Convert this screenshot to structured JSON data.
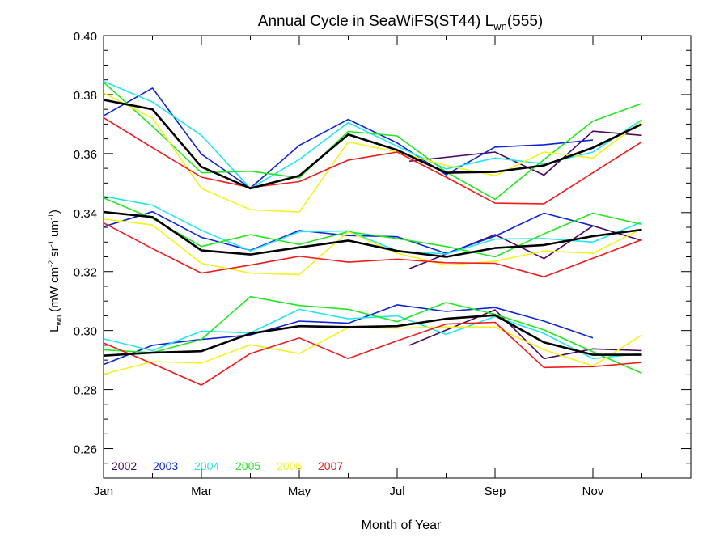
{
  "chart_data": {
    "type": "line",
    "title": {
      "main": "Annual Cycle in SeaWiFS(ST44) L",
      "sub": "wn",
      "tail": "(555)"
    },
    "xlabel": "Month of Year",
    "ylabel": {
      "main": "L",
      "sub": "wn",
      "units_pre": "(mW cm",
      "sup1": "-2",
      "units_mid1": " sr",
      "sup2": "-1",
      "units_mid2": " um",
      "sup3": "-1",
      "units_post": ")"
    },
    "xlim": [
      1,
      13
    ],
    "ylim": [
      0.25,
      0.4
    ],
    "x_ticks": [
      {
        "x": 1,
        "label": "Jan"
      },
      {
        "x": 3,
        "label": "Mar"
      },
      {
        "x": 5,
        "label": "May"
      },
      {
        "x": 7,
        "label": "Jul"
      },
      {
        "x": 9,
        "label": "Sep"
      },
      {
        "x": 11,
        "label": "Nov"
      }
    ],
    "x_minor_ticks": [
      2,
      4,
      6,
      8,
      10,
      12
    ],
    "y_ticks": [
      "0.26",
      "0.28",
      "0.30",
      "0.32",
      "0.34",
      "0.36",
      "0.38",
      "0.40"
    ],
    "legend": {
      "position": "bottom-left"
    },
    "series": [
      {
        "name": "2002",
        "color": "#4b0a5e",
        "groups": [
          {
            "x": [
              7.25,
              9,
              10,
              11,
              12
            ],
            "y": [
              0.3574,
              0.3605,
              0.3527,
              0.3676,
              0.3662
            ]
          },
          {
            "x": [
              7.25,
              9,
              10,
              11,
              12
            ],
            "y": [
              0.321,
              0.3325,
              0.3244,
              0.3355,
              0.3305
            ]
          },
          {
            "x": [
              7.25,
              9,
              10,
              11,
              12
            ],
            "y": [
              0.295,
              0.307,
              0.2905,
              0.2938,
              0.2932
            ]
          }
        ]
      },
      {
        "name": "2003",
        "color": "#0d24d6",
        "groups": [
          {
            "x": [
              1,
              2,
              3,
              4,
              5,
              6,
              7,
              8,
              9,
              10,
              11
            ],
            "y": [
              0.3728,
              0.3822,
              0.3598,
              0.3483,
              0.3628,
              0.3716,
              0.3636,
              0.3528,
              0.3622,
              0.363,
              0.3646
            ]
          },
          {
            "x": [
              1,
              2,
              3,
              4,
              5,
              6,
              7,
              8,
              9,
              10,
              11
            ],
            "y": [
              0.3352,
              0.3403,
              0.3316,
              0.3272,
              0.3339,
              0.3322,
              0.3318,
              0.3262,
              0.332,
              0.3398,
              0.3355
            ]
          },
          {
            "x": [
              1,
              2,
              3,
              4,
              5,
              6,
              7,
              8,
              9,
              10,
              11
            ],
            "y": [
              0.2885,
              0.295,
              0.297,
              0.2985,
              0.3032,
              0.3025,
              0.3087,
              0.3065,
              0.3078,
              0.3032,
              0.2975
            ]
          }
        ]
      },
      {
        "name": "2004",
        "color": "#22e6ec",
        "groups": [
          {
            "x": [
              1,
              2,
              3,
              4,
              5,
              6,
              7,
              8,
              9,
              10,
              11,
              12
            ],
            "y": [
              0.3845,
              0.3775,
              0.3662,
              0.3482,
              0.358,
              0.3705,
              0.3625,
              0.3548,
              0.3585,
              0.3565,
              0.3605,
              0.3715
            ]
          },
          {
            "x": [
              1,
              2,
              3,
              4,
              5,
              6,
              7,
              8,
              9,
              10,
              11,
              12
            ],
            "y": [
              0.3455,
              0.3425,
              0.334,
              0.327,
              0.3335,
              0.3338,
              0.327,
              0.326,
              0.331,
              0.3312,
              0.33,
              0.3368
            ]
          },
          {
            "x": [
              1,
              2,
              3,
              4,
              5,
              6,
              7,
              8,
              9,
              10,
              11,
              12
            ],
            "y": [
              0.2972,
              0.2932,
              0.2998,
              0.2992,
              0.3072,
              0.304,
              0.305,
              0.2987,
              0.3048,
              0.299,
              0.2905,
              0.2922
            ]
          }
        ]
      },
      {
        "name": "2005",
        "color": "#22e622",
        "groups": [
          {
            "x": [
              1,
              2,
              3,
              4,
              5,
              6,
              7,
              8,
              9,
              10,
              11,
              12
            ],
            "y": [
              0.3842,
              0.3692,
              0.3535,
              0.354,
              0.3518,
              0.3675,
              0.366,
              0.3538,
              0.3445,
              0.358,
              0.371,
              0.377
            ]
          },
          {
            "x": [
              1,
              2,
              3,
              4,
              5,
              6,
              7,
              8,
              9,
              10,
              11,
              12
            ],
            "y": [
              0.345,
              0.338,
              0.3285,
              0.3325,
              0.3292,
              0.3335,
              0.3312,
              0.3285,
              0.325,
              0.3328,
              0.3398,
              0.336
            ]
          },
          {
            "x": [
              1,
              2,
              3,
              4,
              5,
              6,
              7,
              8,
              9,
              10,
              11,
              12
            ],
            "y": [
              0.2935,
              0.2925,
              0.297,
              0.3115,
              0.3085,
              0.3072,
              0.303,
              0.3095,
              0.3055,
              0.3002,
              0.2928,
              0.2855
            ]
          }
        ]
      },
      {
        "name": "2006",
        "color": "#f2f21f",
        "groups": [
          {
            "x": [
              1,
              2,
              3,
              4,
              5,
              6,
              7,
              8,
              9,
              10,
              11,
              12
            ],
            "y": [
              0.3805,
              0.372,
              0.3482,
              0.341,
              0.3402,
              0.364,
              0.3605,
              0.356,
              0.3525,
              0.3605,
              0.3585,
              0.371
            ]
          },
          {
            "x": [
              1,
              2,
              3,
              4,
              5,
              6,
              7,
              8,
              9,
              10,
              11,
              12
            ],
            "y": [
              0.3378,
              0.3358,
              0.3228,
              0.3195,
              0.319,
              0.3335,
              0.3262,
              0.3222,
              0.3235,
              0.327,
              0.3262,
              0.3345
            ]
          },
          {
            "x": [
              1,
              2,
              3,
              4,
              5,
              6,
              7,
              8,
              9,
              10,
              11,
              12
            ],
            "y": [
              0.2852,
              0.2895,
              0.289,
              0.2952,
              0.2922,
              0.301,
              0.3008,
              0.3012,
              0.3012,
              0.2935,
              0.288,
              0.2985
            ]
          }
        ]
      },
      {
        "name": "2007",
        "color": "#ee1c1c",
        "groups": [
          {
            "x": [
              1,
              2,
              3,
              4,
              5,
              6,
              7,
              8,
              9,
              10,
              11,
              12
            ],
            "y": [
              0.3722,
              0.362,
              0.352,
              0.3485,
              0.3505,
              0.3578,
              0.3605,
              0.352,
              0.3432,
              0.343,
              0.3535,
              0.364
            ]
          },
          {
            "x": [
              1,
              2,
              3,
              4,
              5,
              6,
              7,
              8,
              9,
              10,
              11,
              12
            ],
            "y": [
              0.3365,
              0.3278,
              0.3195,
              0.3222,
              0.3252,
              0.3232,
              0.3242,
              0.323,
              0.3228,
              0.3182,
              0.3245,
              0.3308
            ]
          },
          {
            "x": [
              1,
              2,
              3,
              4,
              5,
              6,
              7,
              8,
              9,
              10,
              11,
              12
            ],
            "y": [
              0.2958,
              0.2888,
              0.2815,
              0.2922,
              0.2975,
              0.2905,
              0.2965,
              0.3022,
              0.3028,
              0.2875,
              0.2878,
              0.2892
            ]
          }
        ]
      },
      {
        "name": "",
        "color": "#000000",
        "bold": true,
        "groups": [
          {
            "x": [
              1,
              2,
              3,
              4,
              5,
              6,
              7,
              8,
              9,
              10,
              11,
              12
            ],
            "y": [
              0.3782,
              0.375,
              0.3555,
              0.3482,
              0.3525,
              0.3665,
              0.3612,
              0.3535,
              0.3538,
              0.356,
              0.362,
              0.37
            ]
          },
          {
            "x": [
              1,
              2,
              3,
              4,
              5,
              6,
              7,
              8,
              9,
              10,
              11,
              12
            ],
            "y": [
              0.3402,
              0.3385,
              0.3272,
              0.3258,
              0.3282,
              0.3305,
              0.327,
              0.325,
              0.328,
              0.329,
              0.332,
              0.3342
            ]
          },
          {
            "x": [
              1,
              2,
              3,
              4,
              5,
              6,
              7,
              8,
              9,
              10,
              11,
              12
            ],
            "y": [
              0.2915,
              0.2925,
              0.293,
              0.299,
              0.3015,
              0.3012,
              0.3015,
              0.304,
              0.3052,
              0.296,
              0.2918,
              0.2918
            ]
          }
        ]
      }
    ]
  }
}
